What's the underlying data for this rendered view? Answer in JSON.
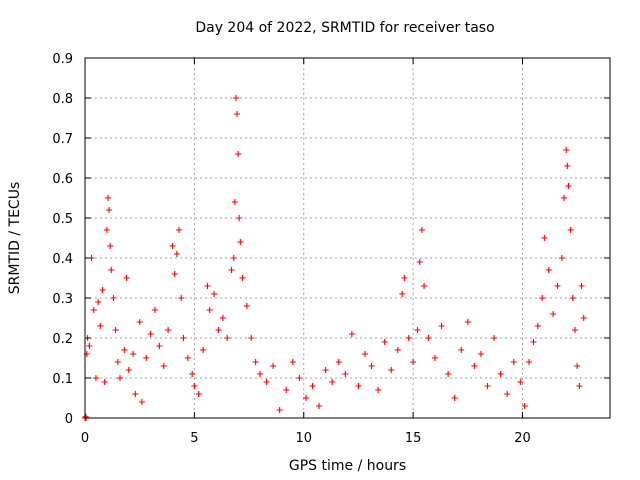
{
  "chart_data": {
    "type": "scatter",
    "title": "Day 204 of 2022, SRMTID for receiver taso",
    "xlabel": "GPS time / hours",
    "ylabel": "SRMTID / TECUs",
    "xlim": [
      0,
      24
    ],
    "ylim": [
      0,
      0.9
    ],
    "xticks": [
      0,
      5,
      10,
      15,
      20
    ],
    "yticks": [
      0,
      0.1,
      0.2,
      0.3,
      0.4,
      0.5,
      0.6,
      0.7,
      0.8,
      0.9
    ],
    "xtick_labels": [
      "0",
      "5",
      "10",
      "15",
      "20"
    ],
    "ytick_labels": [
      "0",
      "0.1",
      "0.2",
      "0.3",
      "0.4",
      "0.5",
      "0.6",
      "0.7",
      "0.8",
      "0.9"
    ],
    "grid": true,
    "marker": "+",
    "color": "#ff0000",
    "series": [
      {
        "name": "SRMTID",
        "points": [
          [
            0.0,
            0.0
          ],
          [
            0.03,
            0.003
          ],
          [
            0.05,
            0.0
          ],
          [
            0.08,
            0.16
          ],
          [
            0.12,
            0.2
          ],
          [
            0.2,
            0.18
          ],
          [
            0.3,
            0.4
          ],
          [
            0.4,
            0.27
          ],
          [
            0.5,
            0.1
          ],
          [
            0.6,
            0.29
          ],
          [
            0.7,
            0.23
          ],
          [
            0.8,
            0.32
          ],
          [
            0.9,
            0.09
          ],
          [
            1.0,
            0.47
          ],
          [
            1.05,
            0.55
          ],
          [
            1.1,
            0.52
          ],
          [
            1.15,
            0.43
          ],
          [
            1.2,
            0.37
          ],
          [
            1.3,
            0.3
          ],
          [
            1.4,
            0.22
          ],
          [
            1.5,
            0.14
          ],
          [
            1.6,
            0.1
          ],
          [
            1.8,
            0.17
          ],
          [
            1.9,
            0.35
          ],
          [
            2.0,
            0.12
          ],
          [
            2.2,
            0.16
          ],
          [
            2.3,
            0.06
          ],
          [
            2.5,
            0.24
          ],
          [
            2.6,
            0.04
          ],
          [
            2.8,
            0.15
          ],
          [
            3.0,
            0.21
          ],
          [
            3.2,
            0.27
          ],
          [
            3.4,
            0.18
          ],
          [
            3.6,
            0.13
          ],
          [
            3.8,
            0.22
          ],
          [
            4.0,
            0.43
          ],
          [
            4.1,
            0.36
          ],
          [
            4.2,
            0.41
          ],
          [
            4.3,
            0.47
          ],
          [
            4.4,
            0.3
          ],
          [
            4.5,
            0.2
          ],
          [
            4.7,
            0.15
          ],
          [
            4.9,
            0.11
          ],
          [
            5.0,
            0.08
          ],
          [
            5.2,
            0.06
          ],
          [
            5.4,
            0.17
          ],
          [
            5.6,
            0.33
          ],
          [
            5.7,
            0.27
          ],
          [
            5.9,
            0.31
          ],
          [
            6.1,
            0.22
          ],
          [
            6.3,
            0.25
          ],
          [
            6.5,
            0.2
          ],
          [
            6.7,
            0.37
          ],
          [
            6.8,
            0.4
          ],
          [
            6.85,
            0.54
          ],
          [
            6.9,
            0.8
          ],
          [
            6.95,
            0.76
          ],
          [
            7.0,
            0.66
          ],
          [
            7.05,
            0.5
          ],
          [
            7.1,
            0.44
          ],
          [
            7.2,
            0.35
          ],
          [
            7.4,
            0.28
          ],
          [
            7.6,
            0.2
          ],
          [
            7.8,
            0.14
          ],
          [
            8.0,
            0.11
          ],
          [
            8.3,
            0.09
          ],
          [
            8.6,
            0.13
          ],
          [
            8.9,
            0.02
          ],
          [
            9.2,
            0.07
          ],
          [
            9.5,
            0.14
          ],
          [
            9.8,
            0.1
          ],
          [
            10.1,
            0.05
          ],
          [
            10.4,
            0.08
          ],
          [
            10.7,
            0.03
          ],
          [
            11.0,
            0.12
          ],
          [
            11.3,
            0.09
          ],
          [
            11.6,
            0.14
          ],
          [
            11.9,
            0.11
          ],
          [
            12.2,
            0.21
          ],
          [
            12.5,
            0.08
          ],
          [
            12.8,
            0.16
          ],
          [
            13.1,
            0.13
          ],
          [
            13.4,
            0.07
          ],
          [
            13.7,
            0.19
          ],
          [
            14.0,
            0.12
          ],
          [
            14.3,
            0.17
          ],
          [
            14.5,
            0.31
          ],
          [
            14.6,
            0.35
          ],
          [
            14.8,
            0.2
          ],
          [
            15.0,
            0.14
          ],
          [
            15.2,
            0.22
          ],
          [
            15.3,
            0.39
          ],
          [
            15.4,
            0.47
          ],
          [
            15.5,
            0.33
          ],
          [
            15.7,
            0.2
          ],
          [
            16.0,
            0.15
          ],
          [
            16.3,
            0.23
          ],
          [
            16.6,
            0.11
          ],
          [
            16.9,
            0.05
          ],
          [
            17.2,
            0.17
          ],
          [
            17.5,
            0.24
          ],
          [
            17.8,
            0.13
          ],
          [
            18.1,
            0.16
          ],
          [
            18.4,
            0.08
          ],
          [
            18.7,
            0.2
          ],
          [
            19.0,
            0.11
          ],
          [
            19.3,
            0.06
          ],
          [
            19.6,
            0.14
          ],
          [
            19.9,
            0.09
          ],
          [
            20.1,
            0.03
          ],
          [
            20.3,
            0.14
          ],
          [
            20.5,
            0.19
          ],
          [
            20.7,
            0.23
          ],
          [
            20.9,
            0.3
          ],
          [
            21.0,
            0.45
          ],
          [
            21.2,
            0.37
          ],
          [
            21.4,
            0.26
          ],
          [
            21.6,
            0.33
          ],
          [
            21.8,
            0.4
          ],
          [
            21.9,
            0.55
          ],
          [
            22.0,
            0.67
          ],
          [
            22.05,
            0.63
          ],
          [
            22.1,
            0.58
          ],
          [
            22.2,
            0.47
          ],
          [
            22.3,
            0.3
          ],
          [
            22.4,
            0.22
          ],
          [
            22.5,
            0.13
          ],
          [
            22.6,
            0.08
          ],
          [
            22.7,
            0.33
          ],
          [
            22.8,
            0.25
          ]
        ]
      }
    ]
  }
}
